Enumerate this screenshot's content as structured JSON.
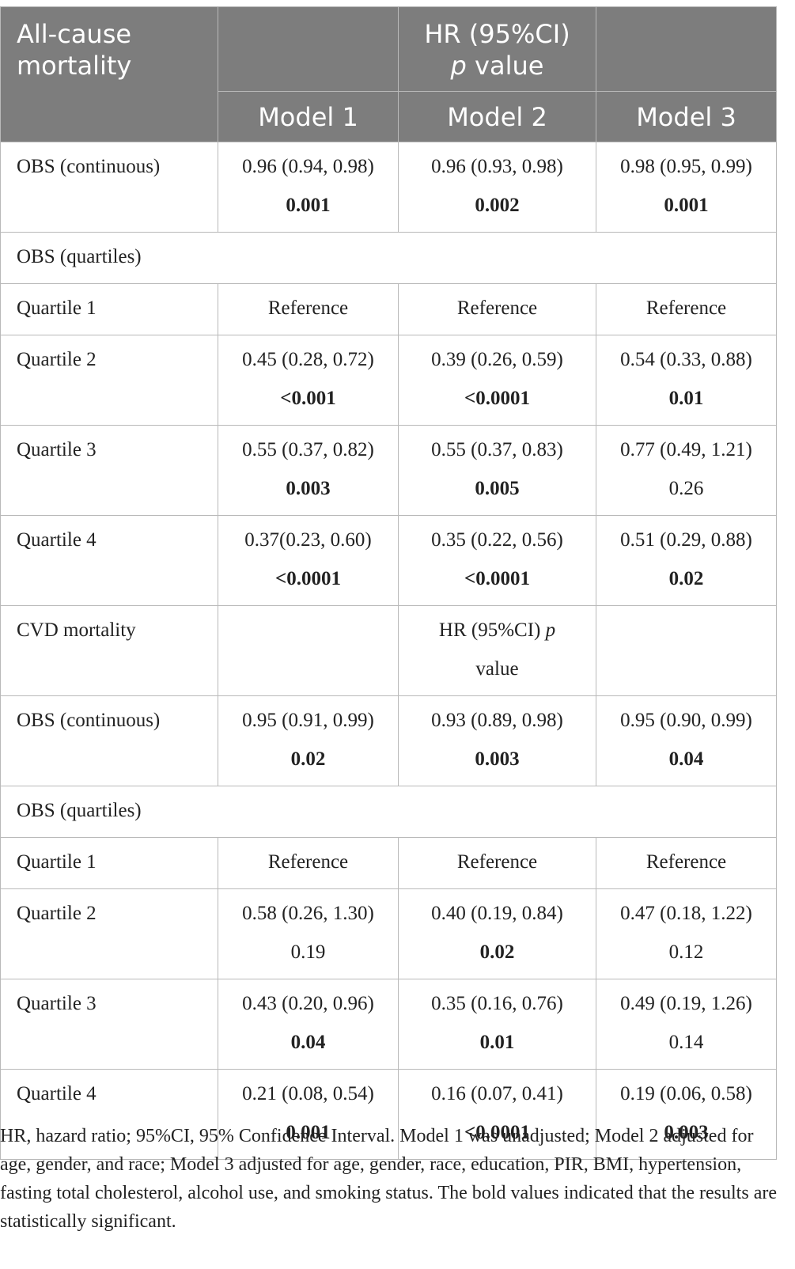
{
  "table": {
    "header": {
      "corner": "All-cause mortality",
      "group_line1": "HR (95%CI)",
      "group_p": "p",
      "group_value": " value",
      "models": [
        "Model 1",
        "Model 2",
        "Model 3"
      ]
    },
    "rows": [
      {
        "label": "OBS (continuous)",
        "cells": [
          {
            "ci": "0.96 (0.94, 0.98)",
            "p": "0.001",
            "bold": true
          },
          {
            "ci": "0.96 (0.93, 0.98)",
            "p": "0.002",
            "bold": true
          },
          {
            "ci": "0.98 (0.95, 0.99)",
            "p": "0.001",
            "bold": true
          }
        ]
      },
      {
        "label": "OBS (quartiles)",
        "section": true
      },
      {
        "label": "Quartile 1",
        "cells": [
          {
            "ci": "Reference"
          },
          {
            "ci": "Reference"
          },
          {
            "ci": "Reference"
          }
        ]
      },
      {
        "label": "Quartile 2",
        "cells": [
          {
            "ci": "0.45 (0.28, 0.72)",
            "p": "<0.001",
            "bold": true
          },
          {
            "ci": "0.39 (0.26, 0.59)",
            "p": "<0.0001",
            "bold": true
          },
          {
            "ci": "0.54 (0.33, 0.88)",
            "p": "0.01",
            "bold": true
          }
        ]
      },
      {
        "label": "Quartile 3",
        "cells": [
          {
            "ci": "0.55 (0.37, 0.82)",
            "p": "0.003",
            "bold": true
          },
          {
            "ci": "0.55 (0.37, 0.83)",
            "p": "0.005",
            "bold": true
          },
          {
            "ci": "0.77 (0.49, 1.21)",
            "p": "0.26",
            "bold": false
          }
        ]
      },
      {
        "label": "Quartile 4",
        "cells": [
          {
            "ci": "0.37(0.23, 0.60)",
            "p": "<0.0001",
            "bold": true
          },
          {
            "ci": "0.35 (0.22, 0.56)",
            "p": "<0.0001",
            "bold": true
          },
          {
            "ci": "0.51 (0.29, 0.88)",
            "p": "0.02",
            "bold": true
          }
        ]
      },
      {
        "label": "CVD mortality",
        "subheader": true,
        "mid_line1": "HR (95%CI) ",
        "mid_p": "p",
        "mid_line2": "value"
      },
      {
        "label": "OBS (continuous)",
        "cells": [
          {
            "ci": "0.95 (0.91, 0.99)",
            "p": "0.02",
            "bold": true
          },
          {
            "ci": "0.93 (0.89, 0.98)",
            "p": "0.003",
            "bold": true
          },
          {
            "ci": "0.95 (0.90, 0.99)",
            "p": "0.04",
            "bold": true
          }
        ]
      },
      {
        "label": "OBS (quartiles)",
        "section": true
      },
      {
        "label": "Quartile 1",
        "cells": [
          {
            "ci": "Reference"
          },
          {
            "ci": "Reference"
          },
          {
            "ci": "Reference"
          }
        ]
      },
      {
        "label": "Quartile 2",
        "cells": [
          {
            "ci": "0.58 (0.26, 1.30)",
            "p": "0.19",
            "bold": false
          },
          {
            "ci": "0.40 (0.19, 0.84)",
            "p": "0.02",
            "bold": true
          },
          {
            "ci": "0.47 (0.18, 1.22)",
            "p": "0.12",
            "bold": false
          }
        ]
      },
      {
        "label": "Quartile 3",
        "cells": [
          {
            "ci": "0.43 (0.20, 0.96)",
            "p": "0.04",
            "bold": true
          },
          {
            "ci": "0.35 (0.16, 0.76)",
            "p": "0.01",
            "bold": true
          },
          {
            "ci": "0.49 (0.19, 1.26)",
            "p": "0.14",
            "bold": false
          }
        ]
      },
      {
        "label": "Quartile 4",
        "cells": [
          {
            "ci": "0.21 (0.08, 0.54)",
            "p": "0.001",
            "bold": true
          },
          {
            "ci": "0.16 (0.07, 0.41)",
            "p": "<0.0001",
            "bold": true
          },
          {
            "ci": "0.19 (0.06, 0.58)",
            "p": "0.003",
            "bold": true
          }
        ]
      }
    ]
  },
  "footnote": "HR, hazard ratio; 95%CI, 95% Confidence Interval. Model 1 was unadjusted; Model 2 adjusted for age, gender, and race; Model 3 adjusted for age, gender, race, education, PIR, BMI, hypertension, fasting total cholesterol, alcohol use, and smoking status. The bold values indicated that the results are statistically significant."
}
